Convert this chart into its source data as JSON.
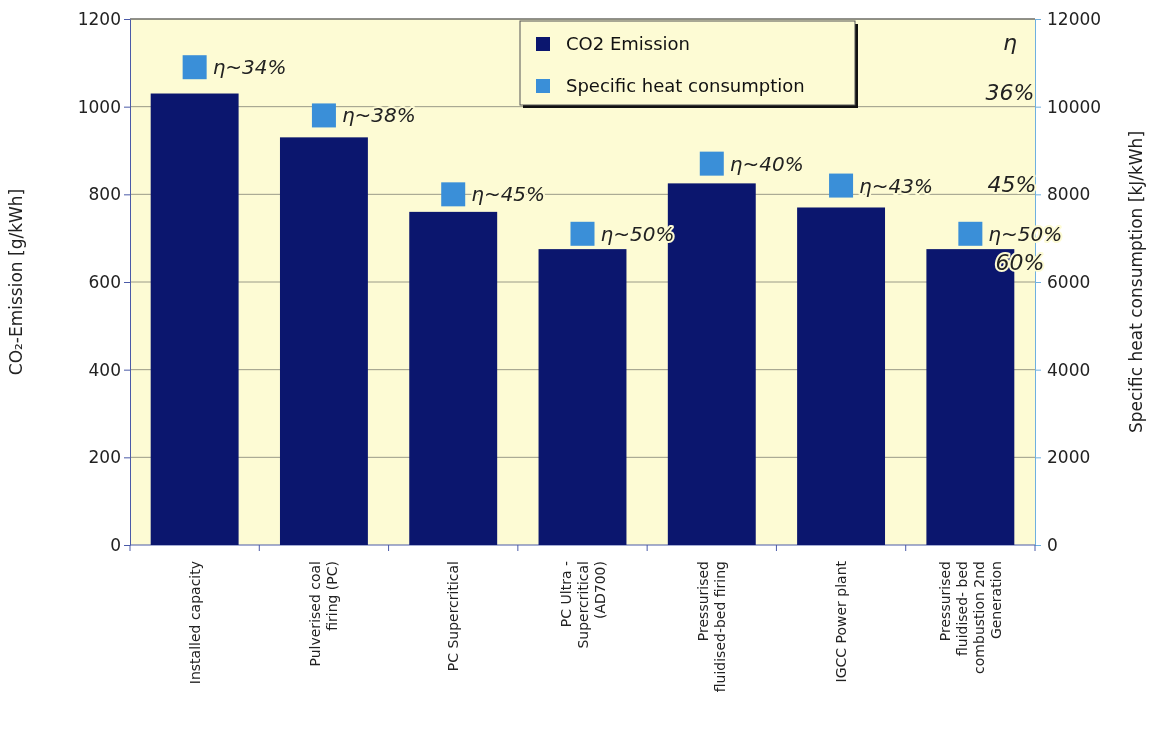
{
  "chart_data": {
    "type": "bar",
    "categories": [
      "Installed capacity",
      "Pulverised coal firing (PC)",
      "PC Supercritical",
      "PC Ultra - Supercritical (AD700)",
      "Pressurised fluidised-bed firing",
      "IGCC Power plant",
      "Pressurised fluidised- bed combustion 2nd Generation"
    ],
    "ylabel": "CO₂-Emission [g/kWh]",
    "y2label": "Specific heat consumption [kJ/kWh]",
    "series": [
      {
        "name": "CO2 Emission",
        "color": "#0b166e",
        "values": [
          1030,
          930,
          760,
          675,
          825,
          770,
          675
        ]
      },
      {
        "name": "Specific heat consumption",
        "type": "scatter",
        "axis": "y2",
        "marker": "square",
        "color": "#3a8fd8",
        "values": [
          10900,
          9800,
          8000,
          7100,
          8700,
          8200,
          7100
        ]
      }
    ],
    "ylim": [
      0,
      1200
    ],
    "yticks": [
      0,
      200,
      400,
      600,
      800,
      1000,
      1200
    ],
    "y2lim": [
      0,
      12000
    ],
    "y2ticks": [
      0,
      2000,
      4000,
      6000,
      8000,
      10000,
      12000
    ],
    "grid": "y",
    "legend": "top right",
    "annotations": [
      "η~34%",
      "η~38%",
      "η~45%",
      "η~50%",
      "η~40%",
      "η~43%",
      "η~50%",
      "η",
      "36%",
      "45%",
      "60%"
    ]
  }
}
